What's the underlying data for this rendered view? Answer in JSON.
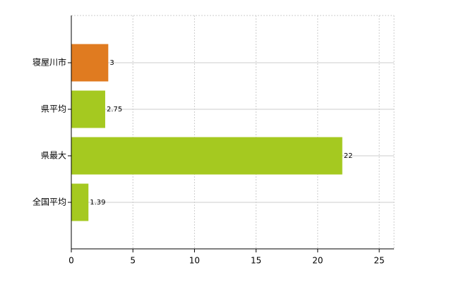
{
  "chart_data": {
    "type": "bar",
    "orientation": "horizontal",
    "categories": [
      "寝屋川市",
      "県平均",
      "県最大",
      "全国平均"
    ],
    "values": [
      3,
      2.75,
      22,
      1.39
    ],
    "colors": [
      "#e07b20",
      "#a5c920",
      "#a5c920",
      "#a5c920"
    ],
    "xlim": [
      0,
      26.2
    ],
    "xticks": [
      0,
      5,
      10,
      15,
      20,
      25
    ],
    "grid": true
  }
}
